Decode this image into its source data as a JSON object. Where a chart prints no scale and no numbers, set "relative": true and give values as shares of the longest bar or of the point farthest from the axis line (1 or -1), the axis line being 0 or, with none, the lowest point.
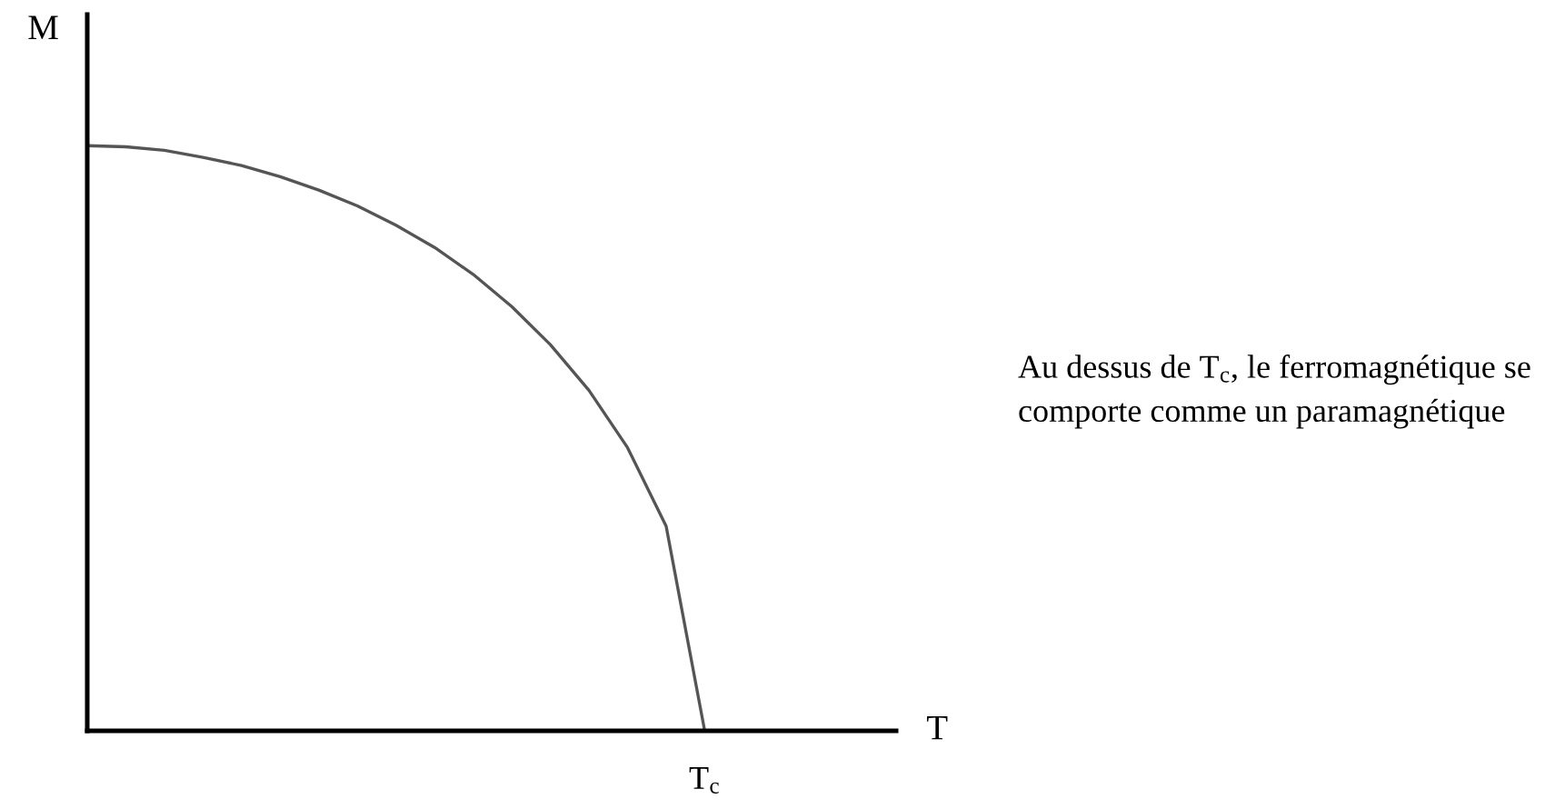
{
  "chart_data": {
    "type": "line",
    "relative": true,
    "ylabel": "M",
    "categories": [
      null,
      null,
      null,
      null,
      null,
      null,
      null,
      null,
      null,
      null,
      null,
      null,
      null,
      null,
      null,
      null,
      null
    ],
    "series": [
      {
        "color": "#555555",
        "values": [
          1,
          0.998,
          0.992,
          0.98,
          0.966,
          0.947,
          0.924,
          0.897,
          0.864,
          0.826,
          0.78,
          0.725,
          0.66,
          0.582,
          0.484,
          0.35,
          0
        ]
      }
    ],
    "annotations": [
      "T$_{c}$",
      "T",
      "Au dessus de T$_{c}$, le ferromagnétique se\ncomporte comme un paramagnétique"
    ],
    "marker": "none",
    "line_style": "solid"
  }
}
